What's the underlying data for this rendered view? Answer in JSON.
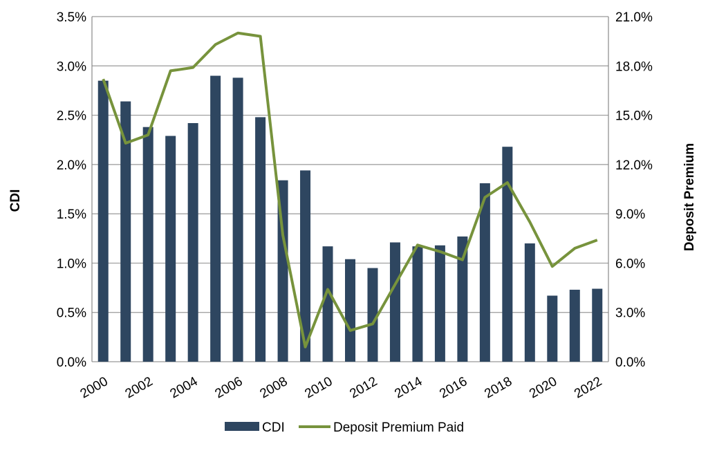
{
  "chart_data": {
    "type": "bar+line",
    "categories": [
      "2000",
      "2001",
      "2002",
      "2003",
      "2004",
      "2005",
      "2006",
      "2007",
      "2008",
      "2009",
      "2010",
      "2011",
      "2012",
      "2013",
      "2014",
      "2015",
      "2016",
      "2017",
      "2018",
      "2019",
      "2020",
      "2021",
      "2022"
    ],
    "x_tick_labels": [
      "2000",
      "2002",
      "2004",
      "2006",
      "2008",
      "2010",
      "2012",
      "2014",
      "2016",
      "2018",
      "2020",
      "2022"
    ],
    "series": [
      {
        "name": "CDI",
        "type": "bar",
        "axis": "left",
        "color": "#2E4660",
        "values": [
          2.85,
          2.64,
          2.38,
          2.29,
          2.42,
          2.9,
          2.88,
          2.48,
          1.84,
          1.94,
          1.17,
          1.04,
          0.95,
          1.21,
          1.17,
          1.18,
          1.27,
          1.81,
          2.18,
          1.2,
          0.67,
          0.73,
          0.74
        ]
      },
      {
        "name": "Deposit Premium Paid",
        "type": "line",
        "axis": "right",
        "color": "#77933C",
        "values": [
          17.2,
          13.3,
          13.8,
          17.7,
          17.9,
          19.3,
          20.0,
          19.8,
          7.7,
          0.9,
          4.4,
          1.9,
          2.3,
          4.7,
          7.1,
          6.7,
          6.2,
          10.0,
          10.9,
          8.5,
          5.8,
          6.9,
          7.4
        ]
      }
    ],
    "ylabel": "CDI",
    "y2label": "Deposit Premium",
    "ylim": [
      0,
      3.5
    ],
    "y2lim": [
      0,
      21
    ],
    "y_ticks": [
      "0.0%",
      "0.5%",
      "1.0%",
      "1.5%",
      "2.0%",
      "2.5%",
      "3.0%",
      "3.5%"
    ],
    "y2_ticks": [
      "0.0%",
      "3.0%",
      "6.0%",
      "9.0%",
      "12.0%",
      "15.0%",
      "18.0%",
      "21.0%"
    ],
    "grid": true,
    "legend_position": "bottom"
  }
}
